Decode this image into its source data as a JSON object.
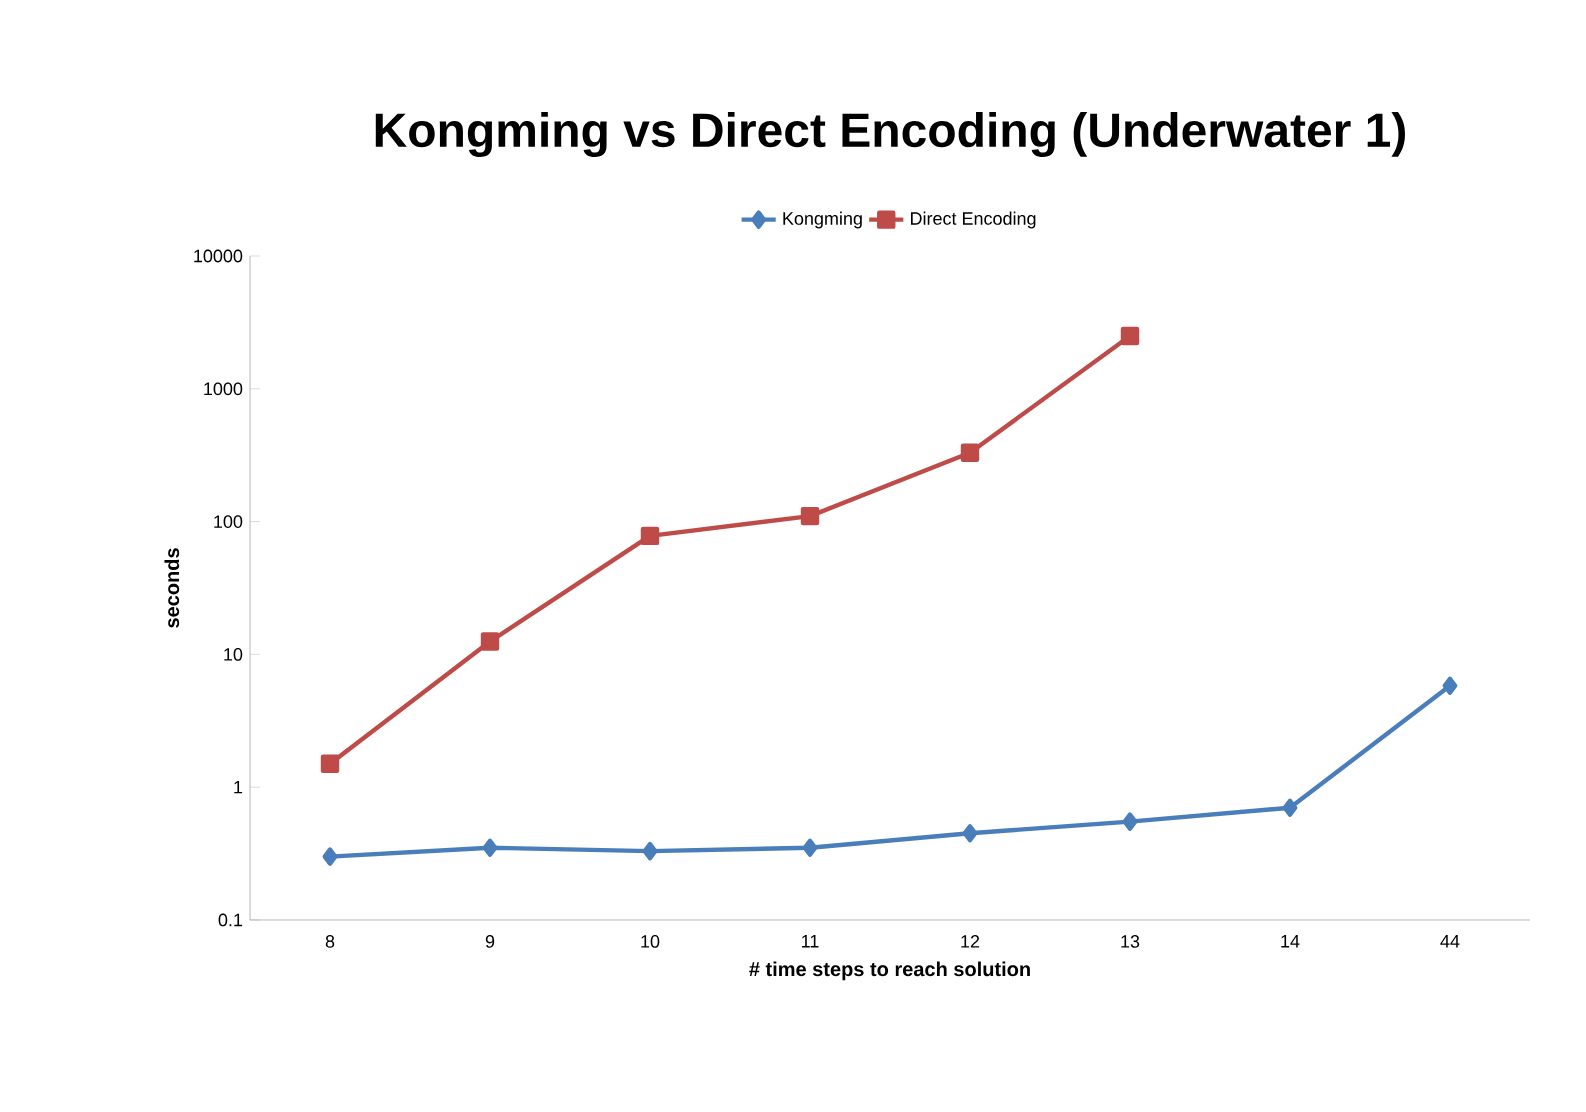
{
  "chart_data": {
    "type": "line",
    "title": "Kongming vs Direct Encoding (Underwater 1)",
    "xlabel": "# time steps to reach solution",
    "ylabel": "seconds",
    "categories": [
      "8",
      "9",
      "10",
      "11",
      "12",
      "13",
      "14",
      "44"
    ],
    "series": [
      {
        "name": "Kongming",
        "color": "#4a7ebb",
        "marker": "diamond",
        "values": [
          0.3,
          0.35,
          0.33,
          0.35,
          0.45,
          0.55,
          0.7,
          5.8
        ]
      },
      {
        "name": "Direct Encoding",
        "color": "#be4b48",
        "marker": "square",
        "values": [
          1.5,
          12.5,
          78,
          110,
          330,
          2500,
          null,
          null
        ]
      }
    ],
    "log": "y",
    "ylim": [
      0.1,
      10000
    ],
    "yticks": [
      0.1,
      1,
      10,
      100,
      1000,
      10000
    ],
    "grid": false,
    "legend": "top",
    "line_style": "solid"
  }
}
